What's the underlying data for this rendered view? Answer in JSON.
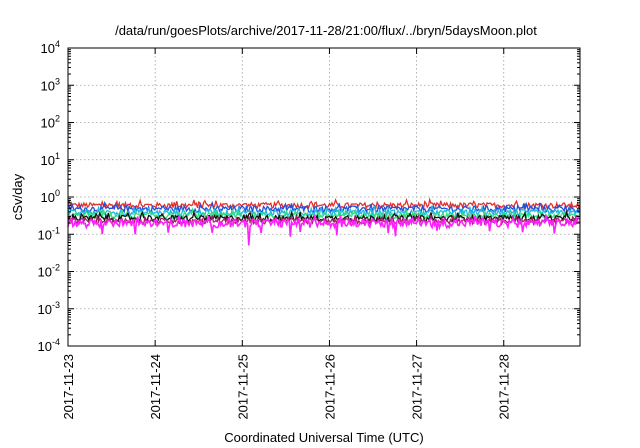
{
  "chart_data": {
    "type": "line",
    "title": "/data/run/goesPlots/archive/2017-11-28/21:00/flux/../bryn/5daysMoon.plot",
    "xlabel": "Coordinated Universal Time (UTC)",
    "ylabel": "cSv/day",
    "yscale": "log",
    "ylim": [
      0.0001,
      10000
    ],
    "xlim": [
      "2017-11-23",
      "2017-11-28T21:00"
    ],
    "y_ticks": [
      {
        "value": 0.0001,
        "base": "10",
        "exp": "-4"
      },
      {
        "value": 0.001,
        "base": "10",
        "exp": "-3"
      },
      {
        "value": 0.01,
        "base": "10",
        "exp": "-2"
      },
      {
        "value": 0.1,
        "base": "10",
        "exp": "-1"
      },
      {
        "value": 1,
        "base": "10",
        "exp": "0"
      },
      {
        "value": 10,
        "base": "10",
        "exp": "1"
      },
      {
        "value": 100,
        "base": "10",
        "exp": "2"
      },
      {
        "value": 1000,
        "base": "10",
        "exp": "3"
      },
      {
        "value": 10000,
        "base": "10",
        "exp": "4"
      }
    ],
    "x_ticks": [
      "2017-11-23",
      "2017-11-24",
      "2017-11-25",
      "2017-11-26",
      "2017-11-27",
      "2017-11-28"
    ],
    "grid": true,
    "legend": "none",
    "series": [
      {
        "color": "#e03030",
        "base": 0.6,
        "noise": 0.1,
        "dips": false
      },
      {
        "color": "#2050e0",
        "base": 0.48,
        "noise": 0.09,
        "dips": false
      },
      {
        "color": "#20b8e0",
        "base": 0.38,
        "noise": 0.07,
        "dips": false
      },
      {
        "color": "#30e080",
        "base": 0.32,
        "noise": 0.06,
        "dips": false
      },
      {
        "color": "#101010",
        "base": 0.27,
        "noise": 0.05,
        "dips": false
      },
      {
        "color": "#a02060",
        "base": 0.23,
        "noise": 0.04,
        "dips": false
      },
      {
        "color": "#ff20ff",
        "base": 0.2,
        "noise": 0.05,
        "dips": true
      }
    ]
  }
}
